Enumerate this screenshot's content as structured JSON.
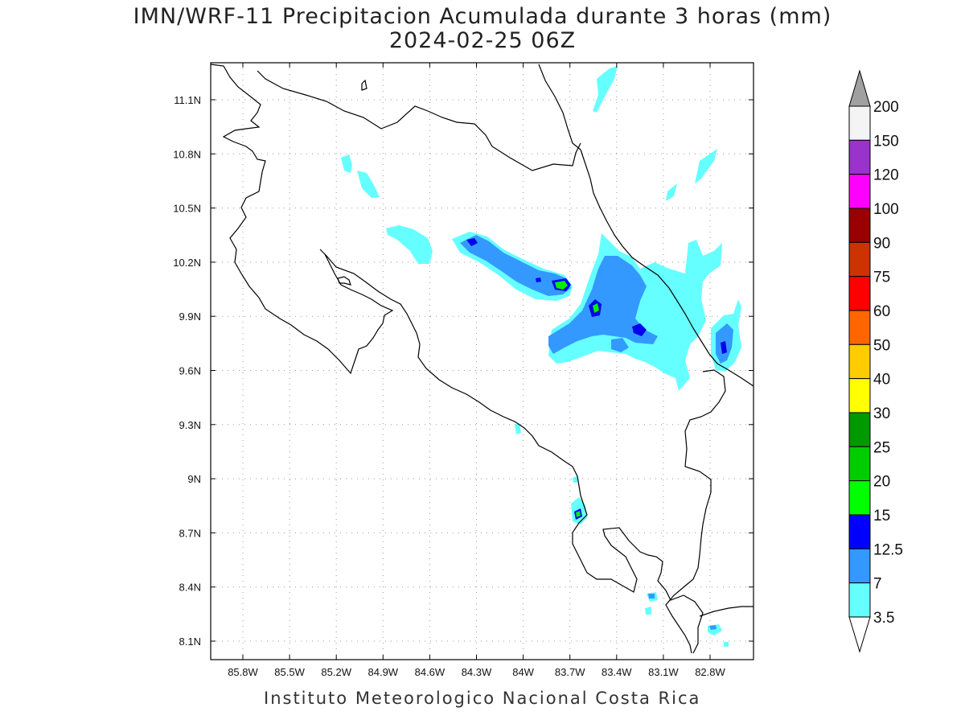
{
  "header": {
    "title": "IMN/WRF-11 Precipitacion Acumulada durante 3 horas (mm)",
    "datetime": "2024-02-25 06Z"
  },
  "map": {
    "lat_ticks": [
      "11.1N",
      "10.8N",
      "10.5N",
      "10.2N",
      "9.9N",
      "9.6N",
      "9.3N",
      "9N",
      "8.7N",
      "8.4N",
      "8.1N"
    ],
    "lon_ticks": [
      "85.8W",
      "85.5W",
      "85.2W",
      "84.9W",
      "84.6W",
      "84.3W",
      "84W",
      "83.7W",
      "83.4W",
      "83.1W",
      "82.8W"
    ],
    "colors": {
      "c3_5": "#66ffff",
      "c7": "#3399ff",
      "c12_5": "#0000ee",
      "c15": "#00ee00",
      "c20": "#00cc00",
      "coast": "#000000",
      "grid": "#999999"
    }
  },
  "colorbar": {
    "labels": [
      "200",
      "150",
      "120",
      "100",
      "90",
      "75",
      "60",
      "50",
      "40",
      "30",
      "25",
      "20",
      "15",
      "12.5",
      "7",
      "3.5"
    ],
    "colors": [
      "#f4f4f4",
      "#9933cc",
      "#ff00ff",
      "#990000",
      "#cc3300",
      "#ff0000",
      "#ff6600",
      "#ffcc00",
      "#ffff00",
      "#009900",
      "#00cc00",
      "#00ff00",
      "#0000ff",
      "#3399ff",
      "#66ffff"
    ],
    "top_triangle_color": "#a0a0a0",
    "bottom_triangle_color": "#ffffff"
  },
  "footer": {
    "credit": "Instituto Meteorologico Nacional Costa Rica"
  }
}
